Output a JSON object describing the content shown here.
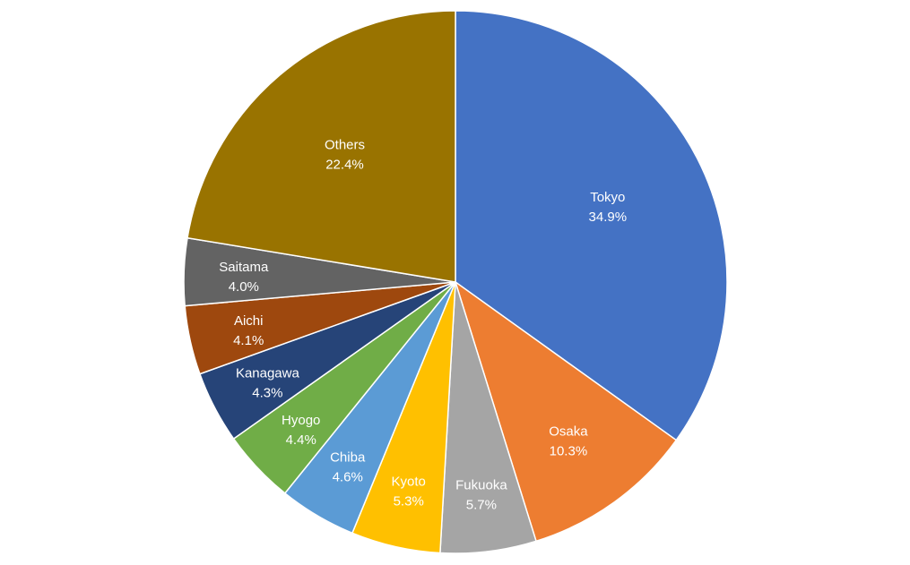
{
  "chart_data": {
    "type": "pie",
    "title": "",
    "start": "12 o'clock",
    "direction": "clockwise",
    "slices": [
      {
        "label": "Tokyo",
        "value": 34.9,
        "display": "34.9%",
        "color": "#4472C4"
      },
      {
        "label": "Osaka",
        "value": 10.3,
        "display": "10.3%",
        "color": "#ED7D31"
      },
      {
        "label": "Fukuoka",
        "value": 5.7,
        "display": "5.7%",
        "color": "#A5A5A5"
      },
      {
        "label": "Kyoto",
        "value": 5.3,
        "display": "5.3%",
        "color": "#FFC000"
      },
      {
        "label": "Chiba",
        "value": 4.6,
        "display": "4.6%",
        "color": "#5B9BD5"
      },
      {
        "label": "Hyogo",
        "value": 4.4,
        "display": "4.4%",
        "color": "#70AD47"
      },
      {
        "label": "Kanagawa",
        "value": 4.3,
        "display": "4.3%",
        "color": "#264478"
      },
      {
        "label": "Aichi",
        "value": 4.1,
        "display": "4.1%",
        "color": "#9E480E"
      },
      {
        "label": "Saitama",
        "value": 4.0,
        "display": "4.0%",
        "color": "#636363"
      },
      {
        "label": "Others",
        "value": 22.4,
        "display": "22.4%",
        "color": "#997300"
      }
    ]
  }
}
